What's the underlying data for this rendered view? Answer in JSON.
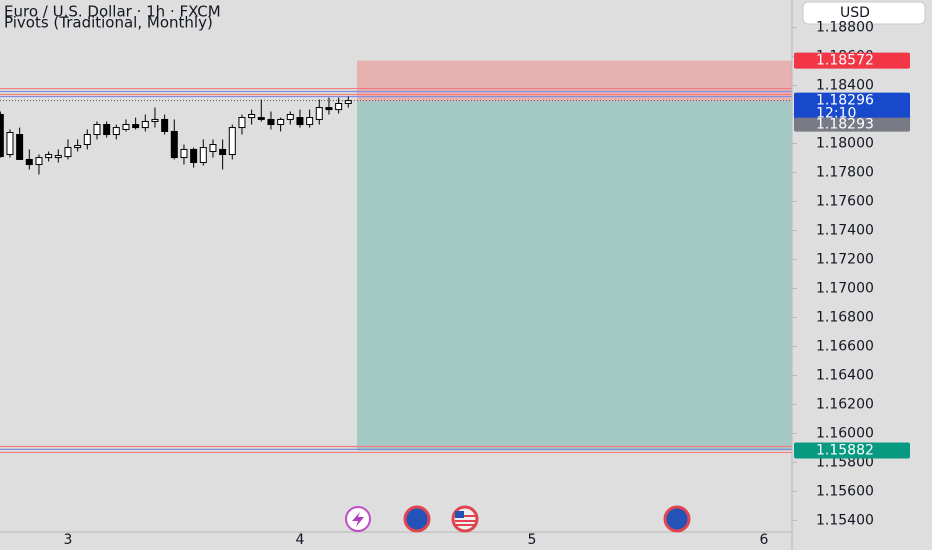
{
  "chart_data": {
    "type": "candlestick",
    "title": "Euro / U.S. Dollar · 1h · FXCM",
    "subtitle": "Pivots (Traditional, Monthly)",
    "currency": "USD",
    "x": [
      2.7083,
      2.75,
      2.7917,
      2.8333,
      2.875,
      2.9167,
      2.9583,
      3,
      3.0417,
      3.0833,
      3.125,
      3.1667,
      3.2083,
      3.25,
      3.2917,
      3.3333,
      3.375,
      3.4167,
      3.4583,
      3.5,
      3.5417,
      3.5833,
      3.625,
      3.6667,
      3.7083,
      3.75,
      3.7917,
      3.8333,
      3.875,
      3.9167,
      3.9583,
      4,
      4.0417,
      4.0833,
      4.125,
      4.1667,
      4.2083
    ],
    "open": [
      1.182,
      1.17924,
      1.18062,
      1.1789,
      1.17855,
      1.17903,
      1.17903,
      1.1791,
      1.17972,
      1.17993,
      1.18062,
      1.18131,
      1.18062,
      1.18097,
      1.18131,
      1.1811,
      1.18152,
      1.18166,
      1.18083,
      1.17903,
      1.17959,
      1.17869,
      1.17945,
      1.17959,
      1.17924,
      1.1811,
      1.18179,
      1.18179,
      1.18166,
      1.18131,
      1.18166,
      1.18179,
      1.18131,
      1.18166,
      1.18248,
      1.18234,
      1.18276
    ],
    "high": [
      1.18221,
      1.18097,
      1.1811,
      1.17959,
      1.17924,
      1.17945,
      1.17959,
      1.18028,
      1.18028,
      1.18097,
      1.18152,
      1.18152,
      1.18131,
      1.18166,
      1.18179,
      1.182,
      1.18248,
      1.182,
      1.18166,
      1.17993,
      1.17972,
      1.18028,
      1.18028,
      1.18028,
      1.18131,
      1.182,
      1.18234,
      1.18303,
      1.18221,
      1.18179,
      1.18221,
      1.18234,
      1.18234,
      1.18303,
      1.18317,
      1.18317,
      1.18324
    ],
    "low": [
      1.17903,
      1.17903,
      1.1789,
      1.17821,
      1.17786,
      1.17876,
      1.17869,
      1.1789,
      1.17945,
      1.17959,
      1.18028,
      1.18041,
      1.18028,
      1.18083,
      1.18097,
      1.18083,
      1.1811,
      1.18062,
      1.1789,
      1.17855,
      1.17834,
      1.17848,
      1.17903,
      1.17821,
      1.1789,
      1.18062,
      1.18131,
      1.18152,
      1.18097,
      1.18083,
      1.18131,
      1.1811,
      1.1811,
      1.18131,
      1.182,
      1.18207,
      1.18248
    ],
    "close": [
      1.1791,
      1.18076,
      1.1789,
      1.17855,
      1.17903,
      1.17924,
      1.17917,
      1.17972,
      1.17986,
      1.18062,
      1.18131,
      1.18062,
      1.1811,
      1.18131,
      1.1811,
      1.18152,
      1.18166,
      1.18083,
      1.17903,
      1.17959,
      1.17869,
      1.17972,
      1.17993,
      1.17924,
      1.1811,
      1.18179,
      1.182,
      1.18166,
      1.18131,
      1.18166,
      1.182,
      1.18131,
      1.18179,
      1.18248,
      1.18234,
      1.18276,
      1.18296
    ],
    "xlim": [
      2.707,
      6.121
    ],
    "xticks": [
      3,
      4,
      5,
      6
    ],
    "ylim": [
      1.1532,
      1.1899
    ],
    "yticks": [
      {
        "value": 1.188,
        "label": "1.18800"
      },
      {
        "value": 1.186,
        "label": "1.18600"
      },
      {
        "value": 1.184,
        "label": "1.18400"
      },
      {
        "value": 1.182,
        "label": "1.18200"
      },
      {
        "value": 1.18,
        "label": "1.18000"
      },
      {
        "value": 1.178,
        "label": "1.17800"
      },
      {
        "value": 1.176,
        "label": "1.17600"
      },
      {
        "value": 1.174,
        "label": "1.17400"
      },
      {
        "value": 1.172,
        "label": "1.17200"
      },
      {
        "value": 1.17,
        "label": "1.17000"
      },
      {
        "value": 1.168,
        "label": "1.16800"
      },
      {
        "value": 1.166,
        "label": "1.16600"
      },
      {
        "value": 1.164,
        "label": "1.16400"
      },
      {
        "value": 1.162,
        "label": "1.16200"
      },
      {
        "value": 1.16,
        "label": "1.16000"
      },
      {
        "value": 1.158,
        "label": "1.15800"
      },
      {
        "value": 1.156,
        "label": "1.15600"
      },
      {
        "value": 1.154,
        "label": "1.15400"
      }
    ],
    "levels": [
      {
        "value": 1.18379,
        "color": "#f77c80"
      },
      {
        "value": 1.18359,
        "color": "#7f8fe0"
      },
      {
        "value": 1.18338,
        "color": "#f77c80"
      },
      {
        "value": 1.18324,
        "color": "#7f8fe0"
      },
      {
        "value": 1.1591,
        "color": "#f77c80"
      },
      {
        "value": 1.1589,
        "color": "#7f8fe0"
      },
      {
        "value": 1.15869,
        "color": "#f77c80"
      }
    ],
    "position": {
      "start": 4.2458,
      "stop": 1.18572,
      "entry": 1.18293,
      "target": 1.15882
    },
    "last_price": 1.18296,
    "countdown": "12:10"
  }
}
